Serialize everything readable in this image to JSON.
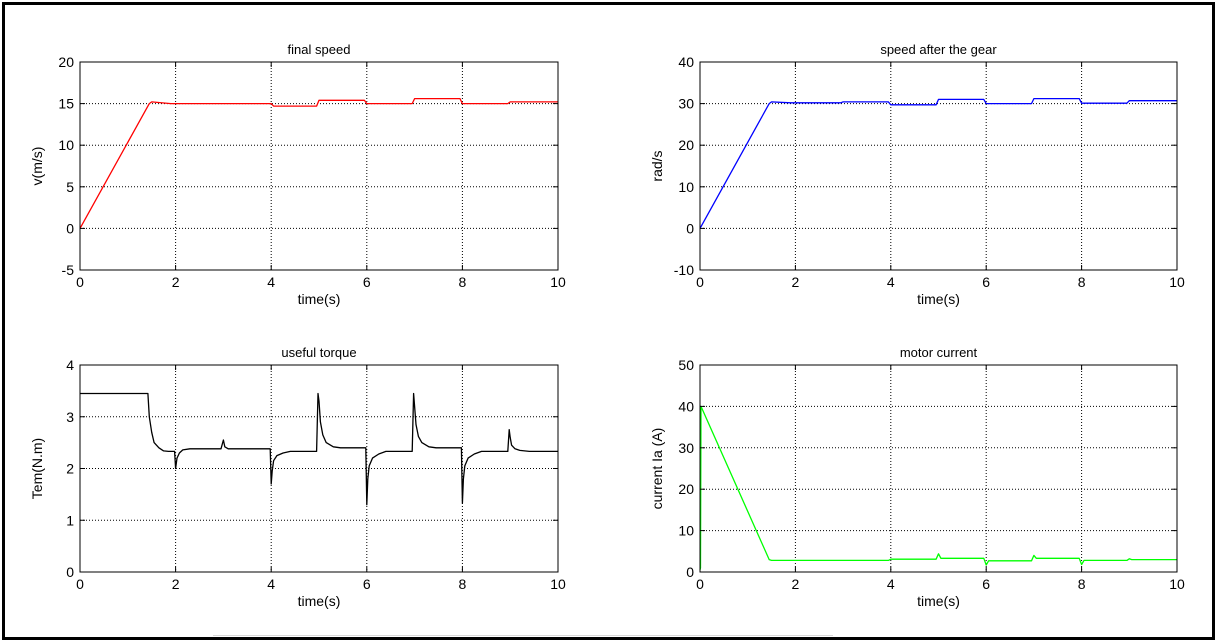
{
  "chart_data": [
    {
      "type": "line",
      "title": "final speed",
      "xlabel": "time(s)",
      "ylabel": "v(m/s)",
      "xlim": [
        0,
        10
      ],
      "ylim": [
        -5,
        20
      ],
      "xticks": [
        0,
        2,
        4,
        6,
        8,
        10
      ],
      "yticks": [
        -5,
        0,
        5,
        10,
        15,
        20
      ],
      "grid": true,
      "series": [
        {
          "color": "#ff0000",
          "x": [
            0,
            1.45,
            1.5,
            1.9,
            4.0,
            4.05,
            4.95,
            5.0,
            5.95,
            6.0,
            6.95,
            7.0,
            7.95,
            8.0,
            8.95,
            9.0,
            10
          ],
          "y": [
            0,
            15.0,
            15.2,
            15.0,
            15.0,
            14.7,
            14.7,
            15.4,
            15.4,
            15.0,
            15.0,
            15.6,
            15.6,
            15.0,
            15.0,
            15.2,
            15.2
          ]
        }
      ]
    },
    {
      "type": "line",
      "title": "speed after the gear",
      "xlabel": "time(s)",
      "ylabel": "rad/s",
      "xlim": [
        0,
        10
      ],
      "ylim": [
        -10,
        40
      ],
      "xticks": [
        0,
        2,
        4,
        6,
        8,
        10
      ],
      "yticks": [
        -10,
        0,
        10,
        20,
        30,
        40
      ],
      "grid": true,
      "series": [
        {
          "color": "#0000ff",
          "x": [
            0,
            1.45,
            1.5,
            1.9,
            2.95,
            3.0,
            3.95,
            4.0,
            4.95,
            5.0,
            5.95,
            6.0,
            6.95,
            7.0,
            7.95,
            8.0,
            8.95,
            9.0,
            10
          ],
          "y": [
            0,
            30.0,
            30.4,
            30.2,
            30.2,
            30.4,
            30.4,
            29.7,
            29.7,
            31.0,
            31.0,
            30.0,
            30.0,
            31.2,
            31.2,
            30.1,
            30.1,
            30.7,
            30.7
          ]
        }
      ]
    },
    {
      "type": "line",
      "title": "useful torque",
      "xlabel": "time(s)",
      "ylabel": "Tem(N.m)",
      "xlim": [
        0,
        10
      ],
      "ylim": [
        0,
        4
      ],
      "xticks": [
        0,
        2,
        4,
        6,
        8,
        10
      ],
      "yticks": [
        0,
        1,
        2,
        3,
        4
      ],
      "grid": true,
      "series": [
        {
          "color": "#000000",
          "x": [
            0,
            1.42,
            1.45,
            1.5,
            1.55,
            1.65,
            1.75,
            1.85,
            1.98,
            2.0,
            2.03,
            2.08,
            2.15,
            2.3,
            2.95,
            3.0,
            3.03,
            3.1,
            3.98,
            4.0,
            4.02,
            4.05,
            4.12,
            4.25,
            4.4,
            4.95,
            4.98,
            5.0,
            5.03,
            5.08,
            5.15,
            5.3,
            5.45,
            5.98,
            6.0,
            6.02,
            6.05,
            6.12,
            6.25,
            6.4,
            6.95,
            6.98,
            7.0,
            7.03,
            7.08,
            7.15,
            7.3,
            7.45,
            7.98,
            8.0,
            8.02,
            8.05,
            8.12,
            8.25,
            8.4,
            8.95,
            8.98,
            9.0,
            9.03,
            9.1,
            9.2,
            9.4,
            10
          ],
          "y": [
            3.45,
            3.45,
            3.0,
            2.7,
            2.5,
            2.4,
            2.34,
            2.33,
            2.33,
            2.0,
            2.2,
            2.3,
            2.36,
            2.38,
            2.38,
            2.55,
            2.42,
            2.38,
            2.38,
            1.7,
            1.95,
            2.15,
            2.25,
            2.3,
            2.33,
            2.33,
            3.45,
            3.3,
            2.9,
            2.65,
            2.5,
            2.42,
            2.4,
            2.4,
            1.3,
            1.8,
            2.05,
            2.2,
            2.28,
            2.33,
            2.33,
            3.45,
            3.2,
            2.85,
            2.62,
            2.5,
            2.42,
            2.4,
            2.4,
            1.33,
            1.8,
            2.05,
            2.2,
            2.28,
            2.33,
            2.33,
            2.75,
            2.6,
            2.45,
            2.38,
            2.35,
            2.33,
            2.33
          ]
        }
      ]
    },
    {
      "type": "line",
      "title": "motor current",
      "xlabel": "time(s)",
      "ylabel": "current Ia (A)",
      "xlim": [
        0,
        10
      ],
      "ylim": [
        0,
        50
      ],
      "xticks": [
        0,
        2,
        4,
        6,
        8,
        10
      ],
      "yticks": [
        0,
        10,
        20,
        30,
        40,
        50
      ],
      "grid": true,
      "series": [
        {
          "color": "#00ff00",
          "x": [
            0,
            0.01,
            0.02,
            1.45,
            1.5,
            3.95,
            4.0,
            4.95,
            5.0,
            5.05,
            5.95,
            6.0,
            6.05,
            6.95,
            7.0,
            7.05,
            7.95,
            8.0,
            8.05,
            8.95,
            9.0,
            9.05,
            10
          ],
          "y": [
            0.5,
            1.0,
            40.0,
            3.0,
            2.8,
            2.8,
            3.1,
            3.1,
            4.4,
            3.3,
            3.3,
            1.7,
            2.7,
            2.7,
            4.0,
            3.3,
            3.3,
            1.8,
            2.8,
            2.8,
            3.2,
            3.0,
            3.0
          ]
        }
      ]
    }
  ]
}
